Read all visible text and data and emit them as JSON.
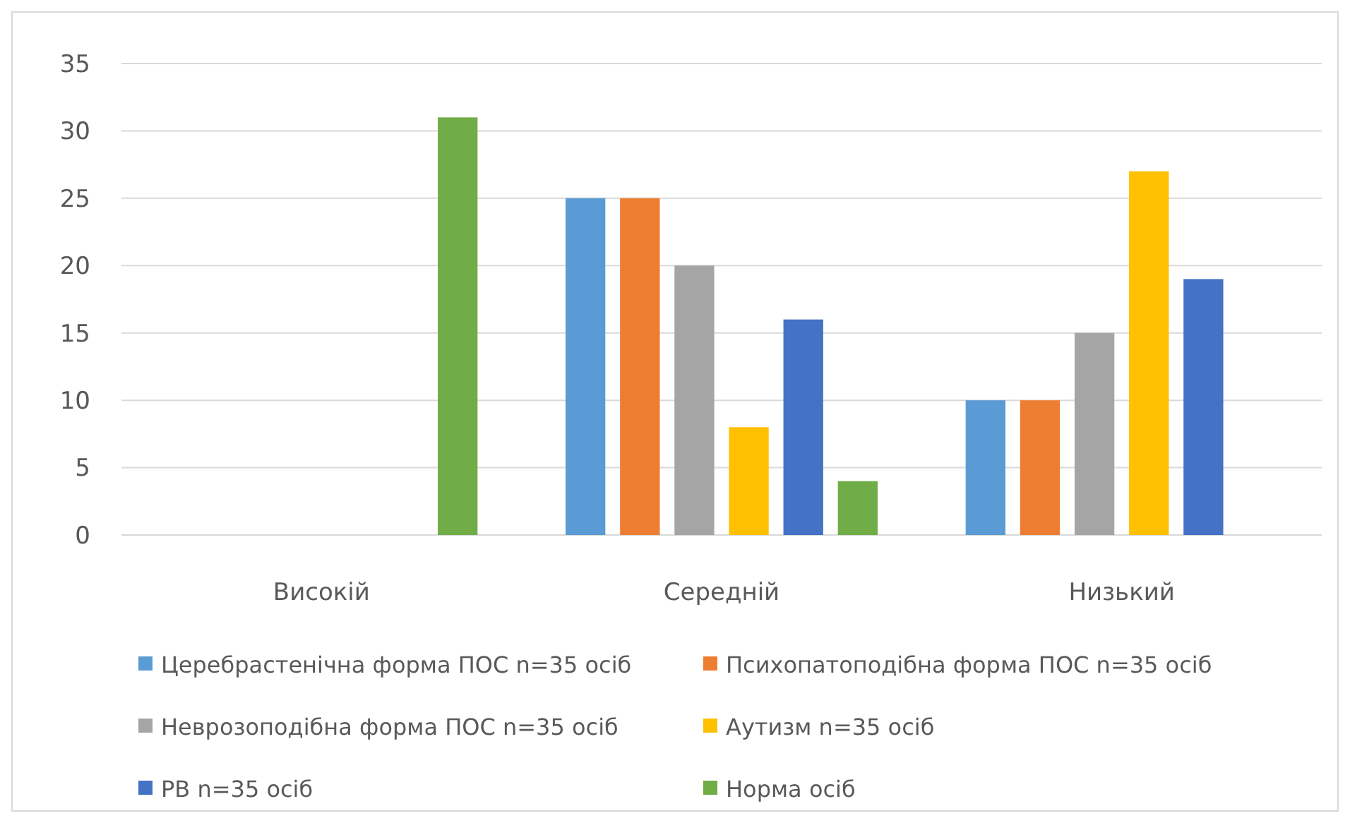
{
  "chart_data": {
    "type": "bar",
    "categories": [
      "Високій",
      "Середній",
      "Низький"
    ],
    "series": [
      {
        "name": "Церебрастенічна форма ПОС n=35 осіб",
        "color": "#5b9bd5",
        "values": [
          0,
          25,
          10
        ]
      },
      {
        "name": "Психопатоподібна форма ПОС n=35 осіб",
        "color": "#ed7d31",
        "values": [
          0,
          25,
          10
        ]
      },
      {
        "name": "Неврозоподібна форма ПОС n=35 осіб",
        "color": "#a5a5a5",
        "values": [
          0,
          20,
          15
        ]
      },
      {
        "name": "Аутизм n=35 осіб",
        "color": "#ffc000",
        "values": [
          0,
          8,
          27
        ]
      },
      {
        "name": "РВ n=35 осіб",
        "color": "#4472c4",
        "values": [
          0,
          16,
          19
        ]
      },
      {
        "name": "Норма осіб",
        "color": "#70ad47",
        "values": [
          31,
          4,
          0
        ]
      }
    ],
    "ylim": [
      0,
      35
    ],
    "yticks": [
      0,
      5,
      10,
      15,
      20,
      25,
      30,
      35
    ],
    "grid": "y",
    "legend": "bottom"
  }
}
